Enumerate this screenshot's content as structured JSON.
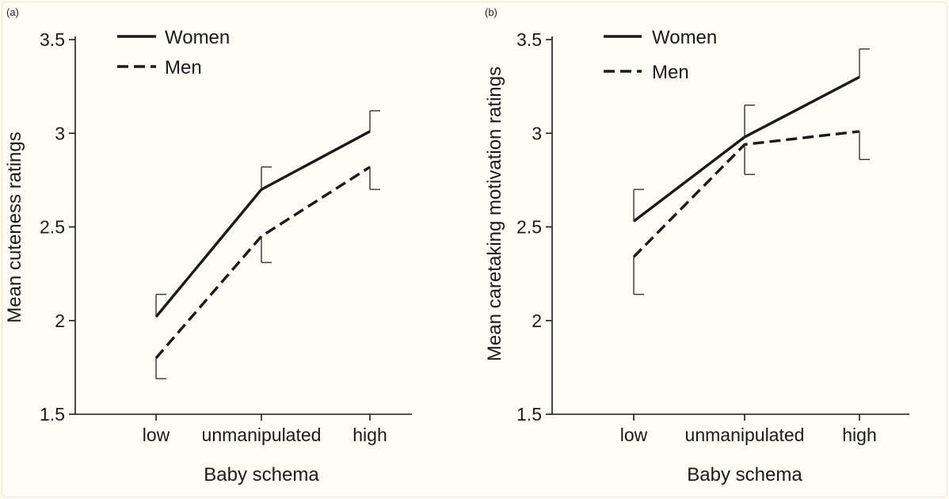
{
  "chart_data": [
    {
      "panel_label": "(a)",
      "type": "line",
      "categories": [
        "low",
        "unmanipulated",
        "high"
      ],
      "series": [
        {
          "name": "Women",
          "values": [
            2.02,
            2.7,
            3.01
          ],
          "err_upper": [
            2.14,
            2.82,
            3.12
          ],
          "style": "solid"
        },
        {
          "name": "Men",
          "values": [
            1.8,
            2.45,
            2.82
          ],
          "err_lower": [
            1.69,
            2.31,
            2.7
          ],
          "style": "dashed"
        }
      ],
      "xlabel": "Baby schema",
      "ylabel": "Mean cuteness ratings",
      "ylim": [
        1.5,
        3.5
      ],
      "yticks": [
        "1.5",
        "2",
        "2.5",
        "3",
        "3.5"
      ],
      "legend_position": "top-left"
    },
    {
      "panel_label": "(b)",
      "type": "line",
      "categories": [
        "low",
        "unmanipulated",
        "high"
      ],
      "series": [
        {
          "name": "Women",
          "values": [
            2.53,
            2.98,
            3.3
          ],
          "err_upper": [
            2.7,
            3.15,
            3.45
          ],
          "style": "solid"
        },
        {
          "name": "Men",
          "values": [
            2.34,
            2.94,
            3.01
          ],
          "err_lower": [
            2.14,
            2.78,
            2.86
          ],
          "style": "dashed"
        }
      ],
      "xlabel": "Baby schema",
      "ylabel": "Mean caretaking motivation ratings",
      "ylim": [
        1.5,
        3.5
      ],
      "yticks": [
        "1.5",
        "2",
        "2.5",
        "3",
        "3.5"
      ],
      "legend_position": "top-left"
    }
  ],
  "colors": {
    "line": "#1a1a1a",
    "errorbar": "#333333"
  }
}
